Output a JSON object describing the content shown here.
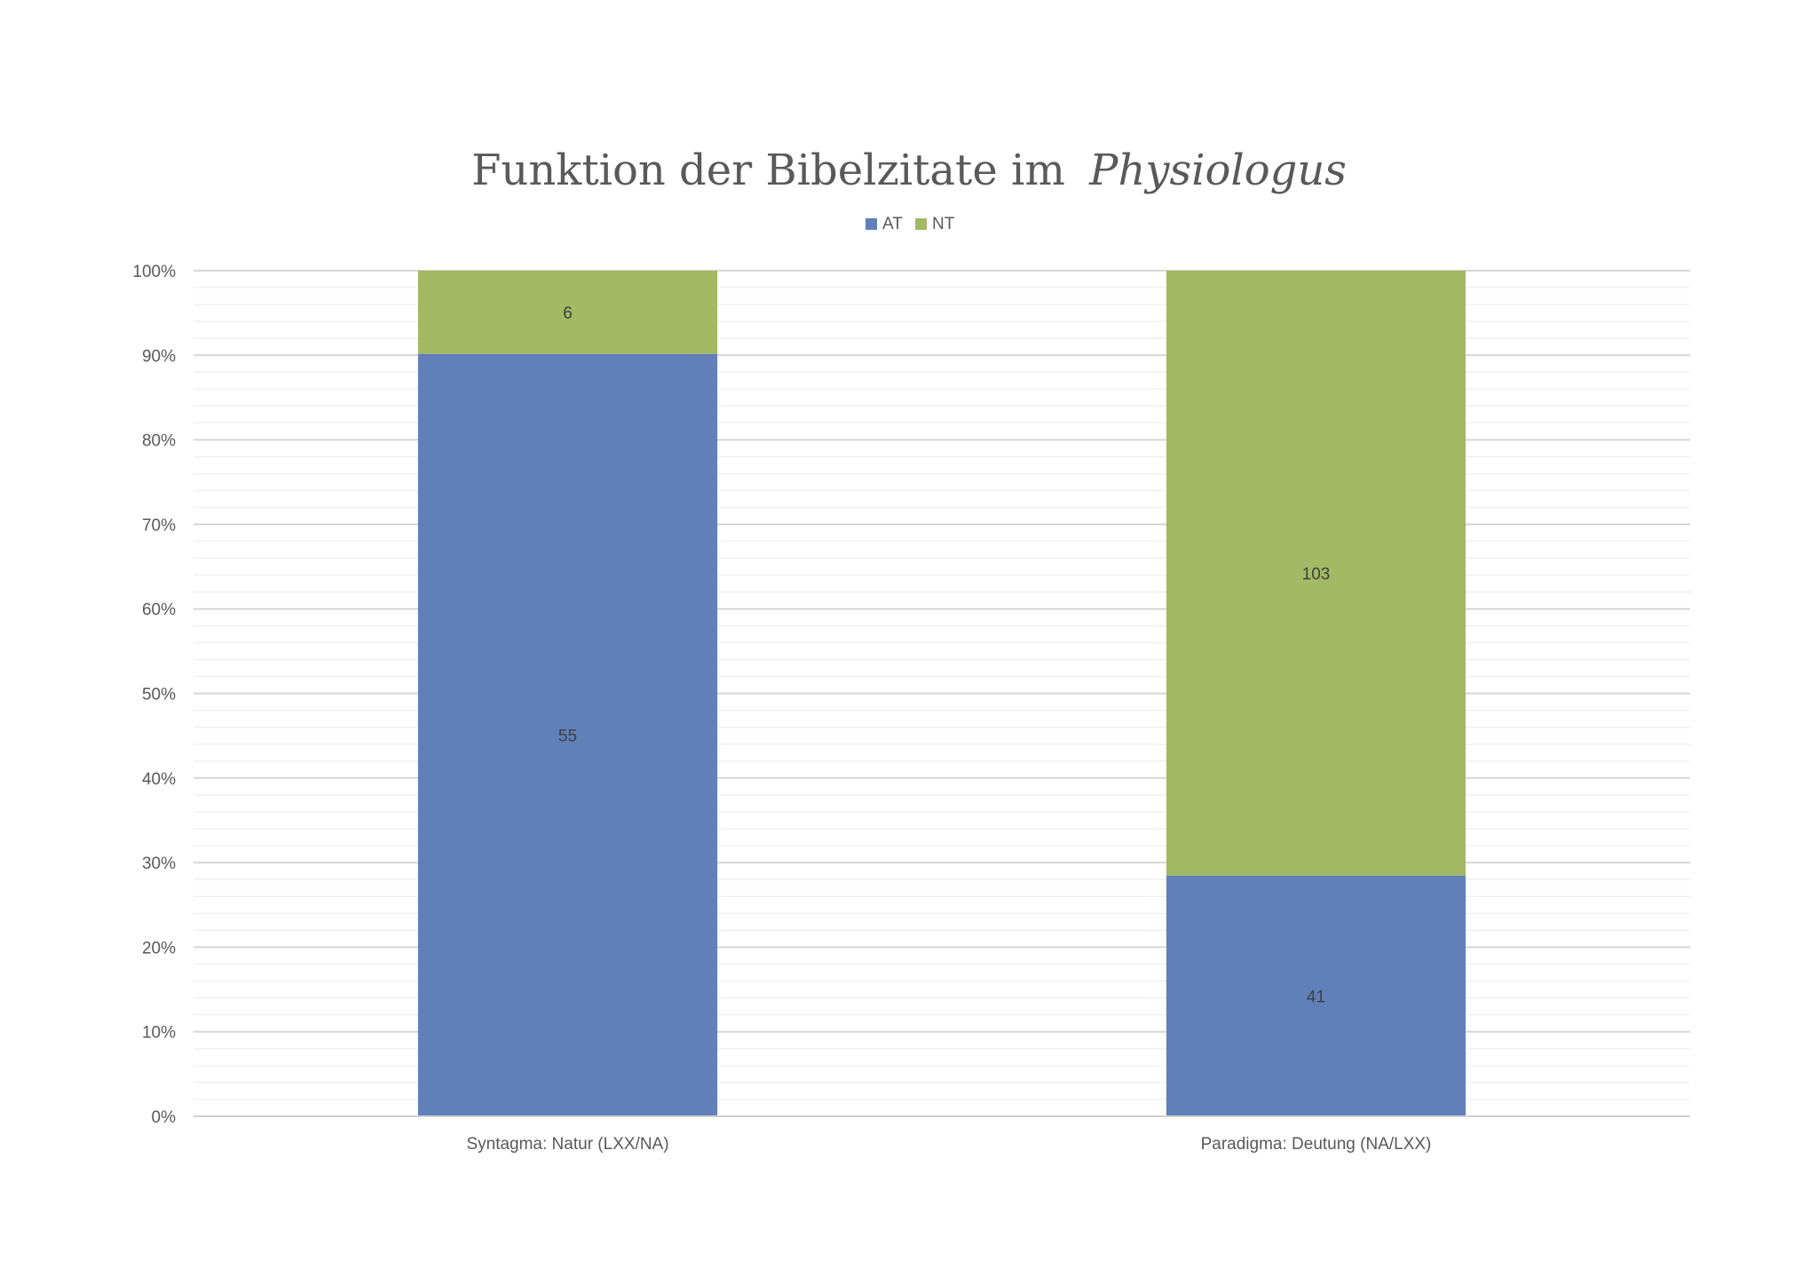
{
  "chart_data": {
    "type": "bar",
    "stacked": "percent",
    "title_main": "Funktion der Bibelzitate im",
    "title_italic": "Physiologus",
    "xlabel": "",
    "ylabel": "",
    "categories": [
      "Syntagma: Natur (LXX/NA)",
      "Paradigma: Deutung (NA/LXX)"
    ],
    "series": [
      {
        "name": "AT",
        "color": "#6180b9",
        "values": [
          55,
          41
        ],
        "labels": [
          "55",
          "41"
        ]
      },
      {
        "name": "NT",
        "color": "#a3b963",
        "values": [
          6,
          103
        ],
        "labels": [
          "6",
          "103"
        ]
      }
    ],
    "ylim": [
      0,
      100
    ],
    "yticks": [
      0,
      10,
      20,
      30,
      40,
      50,
      60,
      70,
      80,
      90,
      100
    ],
    "ytick_labels": [
      "0%",
      "10%",
      "20%",
      "30%",
      "40%",
      "50%",
      "60%",
      "70%",
      "80%",
      "90%",
      "100%"
    ],
    "grid": {
      "major": true,
      "minor": true
    },
    "legend_position": "top"
  }
}
